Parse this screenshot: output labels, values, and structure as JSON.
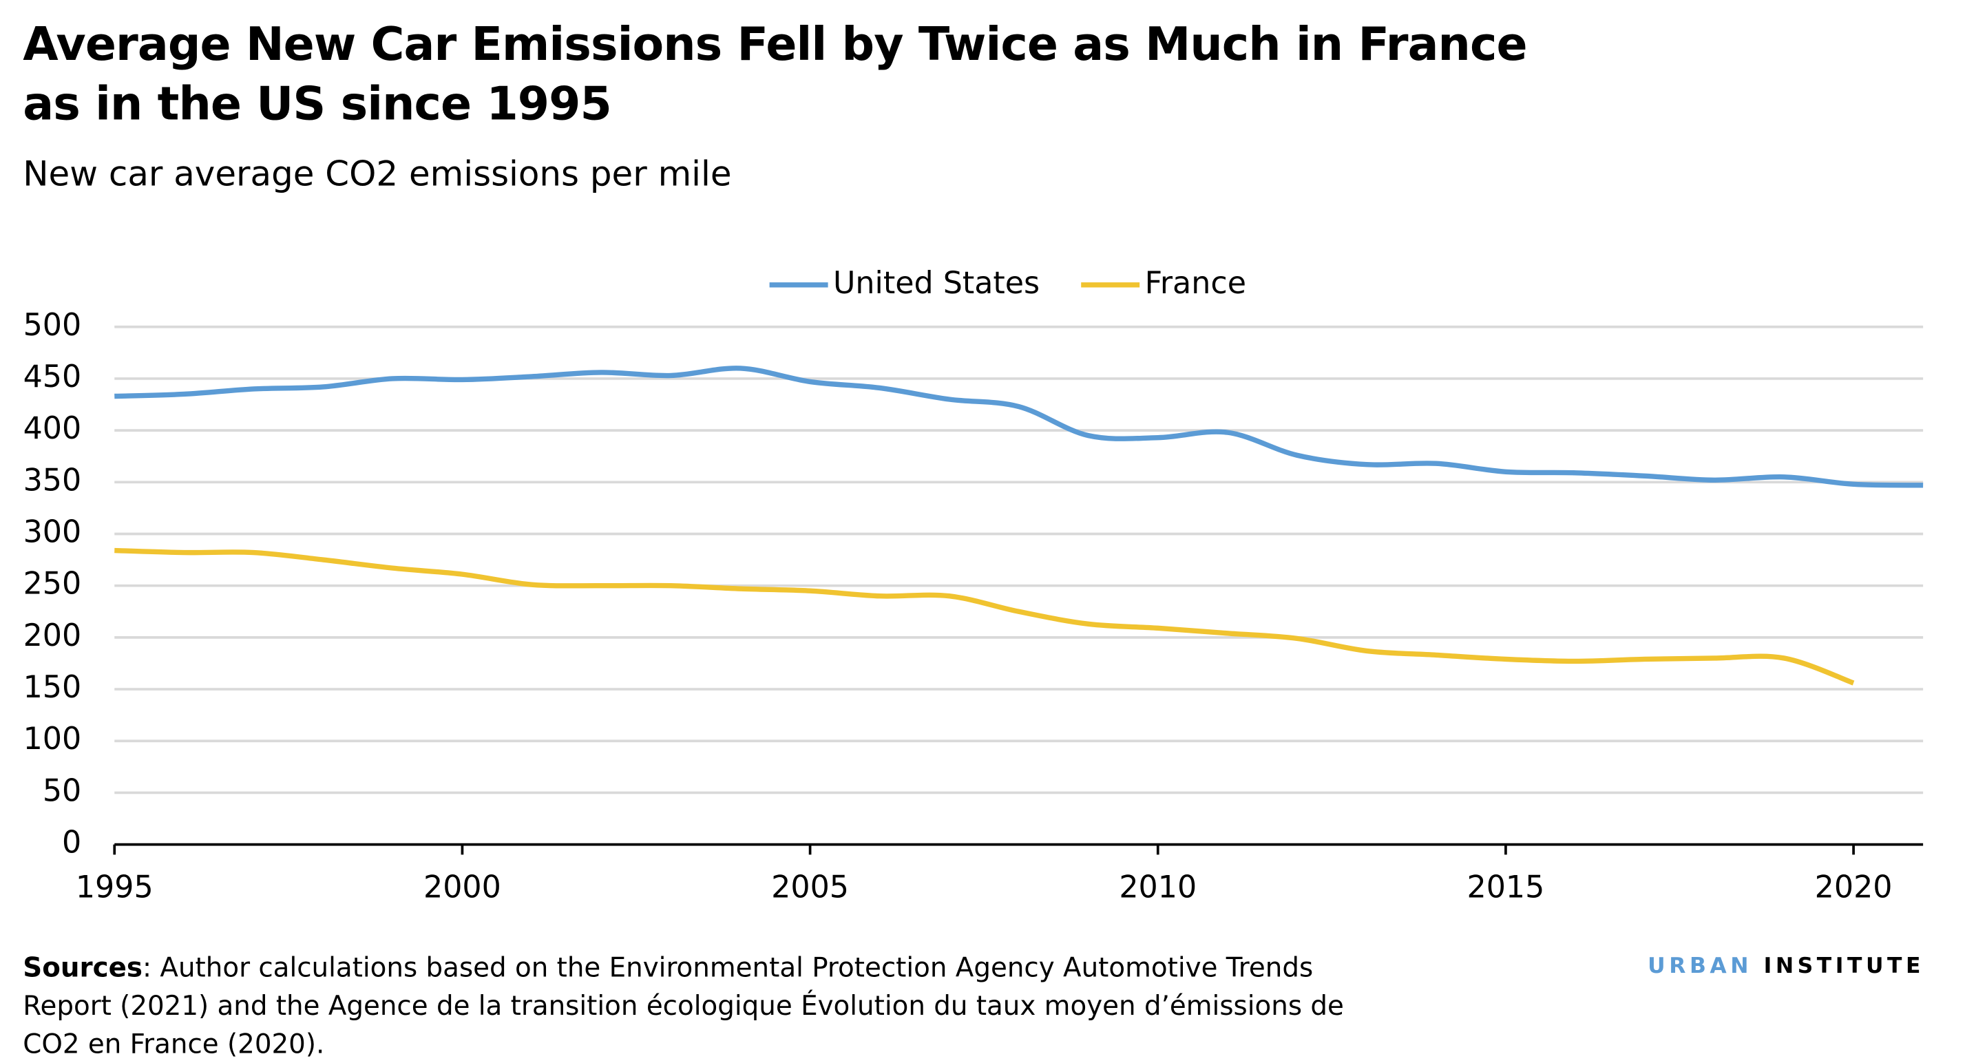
{
  "chart_data": {
    "type": "line",
    "title": "Average New Car Emissions Fell by Twice as Much in France as in the US since 1995",
    "subtitle": "New car average CO2 emissions per mile",
    "x": [
      1995,
      1996,
      1997,
      1998,
      1999,
      2000,
      2001,
      2002,
      2003,
      2004,
      2005,
      2006,
      2007,
      2008,
      2009,
      2010,
      2011,
      2012,
      2013,
      2014,
      2015,
      2016,
      2017,
      2018,
      2019,
      2020,
      2021
    ],
    "series": [
      {
        "name": "United States",
        "color": "#5b9bd5",
        "values": [
          433,
          435,
          440,
          442,
          450,
          449,
          452,
          456,
          453,
          460,
          447,
          441,
          430,
          423,
          395,
          393,
          398,
          376,
          367,
          368,
          360,
          359,
          356,
          352,
          355,
          348,
          347
        ]
      },
      {
        "name": "France",
        "color": "#f0c330",
        "values": [
          284,
          282,
          282,
          275,
          267,
          261,
          251,
          250,
          250,
          247,
          245,
          240,
          240,
          225,
          213,
          209,
          204,
          199,
          187,
          183,
          179,
          177,
          179,
          180,
          180,
          156,
          null
        ]
      }
    ],
    "xlim": [
      1995,
      2021
    ],
    "xticks": [
      1995,
      2000,
      2005,
      2010,
      2015,
      2020
    ],
    "ylim": [
      0,
      500
    ],
    "yticks": [
      0,
      50,
      100,
      150,
      200,
      250,
      300,
      350,
      400,
      450,
      500
    ],
    "grid": true,
    "legend": "top",
    "source_label": "Sources",
    "source_text": ": Author calculations based on the Environmental Protection Agency Automotive Trends Report (2021) and the Agence de la transition écologique Évolution du taux moyen d’émissions de CO2 en France (2020).",
    "brand": [
      "URBAN",
      "INSTITUTE"
    ]
  }
}
